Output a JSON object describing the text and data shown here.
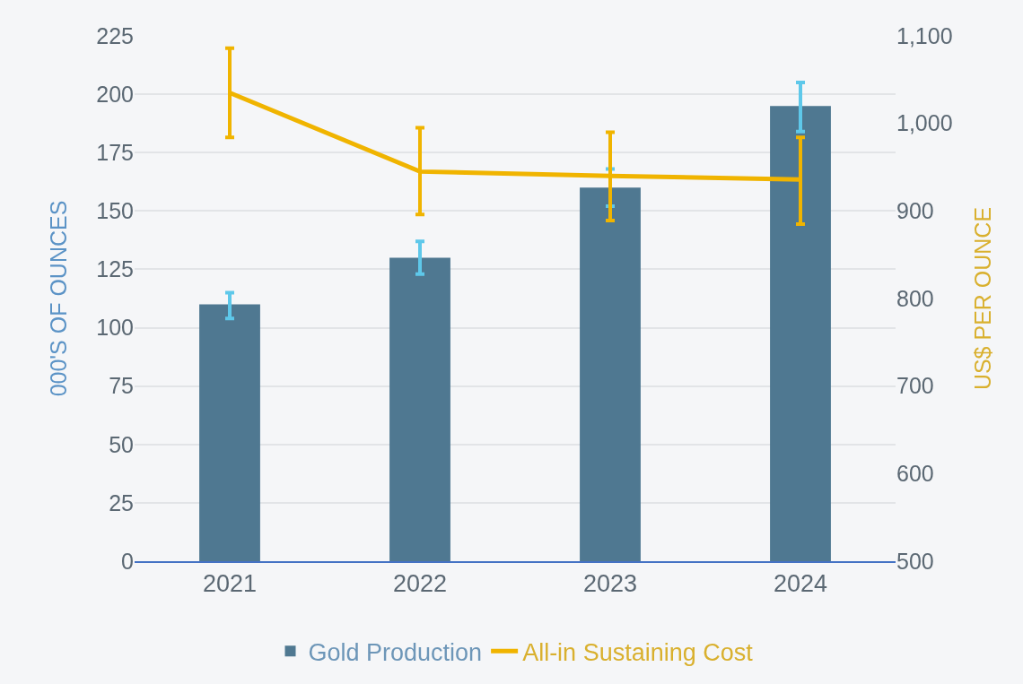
{
  "chart_data": {
    "type": "bar",
    "categories": [
      "2021",
      "2022",
      "2023",
      "2024"
    ],
    "ylabel": "000'S OF OUNCES",
    "y2label": "US$ PER OUNCE",
    "ylim": [
      0,
      225
    ],
    "yticks": [
      0,
      25,
      50,
      75,
      100,
      125,
      150,
      175,
      200,
      225
    ],
    "y2lim": [
      500,
      1100
    ],
    "y2ticks": [
      500,
      600,
      700,
      800,
      900,
      {
        "value": 1000,
        "label": "1,000"
      },
      {
        "value": 1100,
        "label": "1,100"
      }
    ],
    "grid": "y",
    "legend": "bottom",
    "series": [
      {
        "name": "Gold Production",
        "color": "#4f7891",
        "values": [
          110,
          130,
          160,
          195
        ],
        "errors": [
          [
            104,
            115
          ],
          [
            123,
            137
          ],
          [
            152,
            168
          ],
          [
            184,
            205
          ]
        ]
      },
      {
        "name": "All-in Sustaining Cost",
        "type": "line",
        "axis": "y2",
        "color": "#f0b400",
        "values": [
          1035,
          945,
          940,
          936
        ],
        "errors": [
          [
            984,
            1086
          ],
          [
            896,
            995
          ],
          [
            889,
            990
          ],
          [
            885,
            984
          ]
        ]
      }
    ]
  }
}
